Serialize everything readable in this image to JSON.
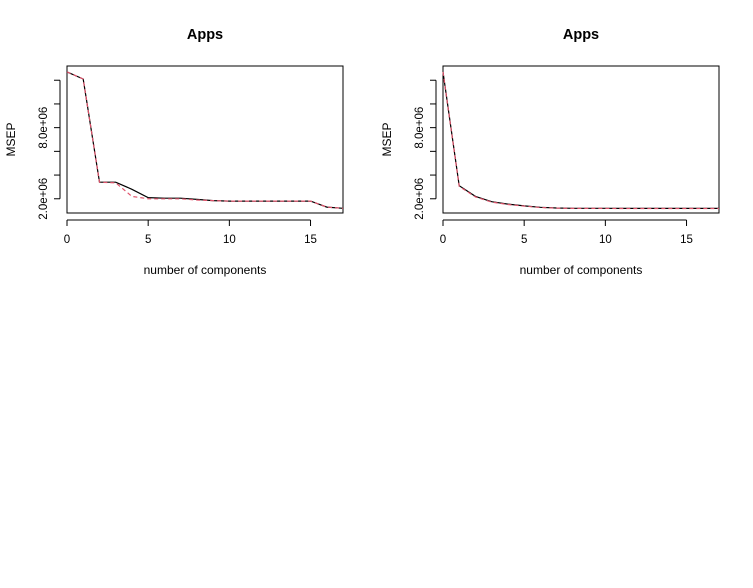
{
  "chart_data": [
    {
      "type": "line",
      "title": "Apps",
      "xlabel": "number of components",
      "ylabel": "MSEP",
      "xlim": [
        0,
        17
      ],
      "ylim": [
        800000,
        13200000
      ],
      "x_ticks": [
        0,
        5,
        10,
        15
      ],
      "x_tick_labels": [
        "0",
        "5",
        "10",
        "15"
      ],
      "y_ticks": [
        2000000,
        4000000,
        6000000,
        8000000,
        10000000,
        12000000
      ],
      "y_tick_labels": [
        "2.0e+06",
        "",
        "",
        "8.0e+06",
        "",
        ""
      ],
      "grid": false,
      "legend": "none",
      "series": [
        {
          "color": "#000000",
          "dash": "solid",
          "x": [
            0,
            1,
            2,
            3,
            4,
            5,
            6,
            7,
            8,
            9,
            10,
            11,
            12,
            13,
            14,
            15,
            16,
            17
          ],
          "y": [
            12700000,
            12100000,
            3400000,
            3400000,
            2800000,
            2100000,
            2050000,
            2050000,
            1950000,
            1850000,
            1800000,
            1800000,
            1800000,
            1800000,
            1800000,
            1800000,
            1300000,
            1200000
          ]
        },
        {
          "color": "#df536b",
          "dash": "dashed",
          "x": [
            0,
            1,
            2,
            3,
            4,
            5,
            6,
            7,
            8,
            9,
            10,
            11,
            12,
            13,
            14,
            15,
            16,
            17
          ],
          "y": [
            12700000,
            12100000,
            3400000,
            3350000,
            2200000,
            2000000,
            2000000,
            2000000,
            1900000,
            1850000,
            1800000,
            1800000,
            1800000,
            1800000,
            1800000,
            1800000,
            1300000,
            1200000
          ]
        }
      ]
    },
    {
      "type": "line",
      "title": "Apps",
      "xlabel": "number of components",
      "ylabel": "MSEP",
      "xlim": [
        0,
        17
      ],
      "ylim": [
        800000,
        13200000
      ],
      "x_ticks": [
        0,
        5,
        10,
        15
      ],
      "x_tick_labels": [
        "0",
        "5",
        "10",
        "15"
      ],
      "y_ticks": [
        2000000,
        4000000,
        6000000,
        8000000,
        10000000,
        12000000
      ],
      "y_tick_labels": [
        "2.0e+06",
        "",
        "",
        "8.0e+06",
        "",
        ""
      ],
      "grid": false,
      "legend": "none",
      "series": [
        {
          "color": "#000000",
          "dash": "solid",
          "x": [
            0,
            1,
            2,
            3,
            4,
            5,
            6,
            7,
            8,
            9,
            10,
            11,
            12,
            13,
            14,
            15,
            16,
            17
          ],
          "y": [
            12700000,
            3100000,
            2200000,
            1750000,
            1550000,
            1400000,
            1280000,
            1220000,
            1200000,
            1200000,
            1200000,
            1190000,
            1190000,
            1190000,
            1190000,
            1190000,
            1190000,
            1190000
          ]
        },
        {
          "color": "#df536b",
          "dash": "dashed",
          "x": [
            0,
            1,
            2,
            3,
            4,
            5,
            6,
            7,
            8,
            9,
            10,
            11,
            12,
            13,
            14,
            15,
            16,
            17
          ],
          "y": [
            12700000,
            3050000,
            2150000,
            1720000,
            1520000,
            1380000,
            1260000,
            1210000,
            1190000,
            1190000,
            1190000,
            1180000,
            1180000,
            1180000,
            1180000,
            1180000,
            1180000,
            1180000
          ]
        }
      ]
    }
  ]
}
